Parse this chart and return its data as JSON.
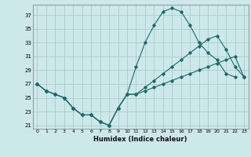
{
  "xlabel": "Humidex (Indice chaleur)",
  "bg_color": "#cde8e8",
  "grid_color": "#a8cccc",
  "line_color": "#1a6b6b",
  "xlim": [
    -0.5,
    23.5
  ],
  "ylim": [
    20.5,
    38.5
  ],
  "yticks": [
    21,
    23,
    25,
    27,
    29,
    31,
    33,
    35,
    37
  ],
  "xticks": [
    0,
    1,
    2,
    3,
    4,
    5,
    6,
    7,
    8,
    9,
    10,
    11,
    12,
    13,
    14,
    15,
    16,
    17,
    18,
    19,
    20,
    21,
    22,
    23
  ],
  "series1_x": [
    0,
    1,
    2,
    3,
    4,
    5,
    6,
    7,
    8,
    9,
    10,
    11,
    12,
    13,
    14,
    15,
    16,
    17,
    18,
    19,
    20,
    21,
    22
  ],
  "series1_y": [
    27.0,
    26.0,
    25.5,
    25.0,
    23.5,
    22.5,
    22.5,
    21.5,
    21.0,
    23.5,
    25.5,
    29.5,
    33.0,
    35.5,
    37.5,
    38.0,
    37.5,
    35.5,
    33.0,
    31.5,
    30.5,
    28.5,
    28.0
  ],
  "series2_x": [
    0,
    1,
    2,
    3,
    4,
    5,
    6,
    7,
    8,
    9,
    10,
    11,
    12,
    13,
    14,
    15,
    16,
    17,
    18,
    19,
    20,
    21,
    22,
    23
  ],
  "series2_y": [
    27.0,
    26.0,
    25.5,
    25.0,
    23.5,
    22.5,
    22.5,
    21.5,
    21.0,
    23.5,
    25.5,
    25.5,
    26.5,
    27.5,
    28.5,
    29.5,
    30.5,
    31.5,
    32.5,
    33.5,
    34.0,
    32.0,
    29.5,
    28.0
  ],
  "series3_x": [
    0,
    1,
    2,
    3,
    4,
    5,
    6,
    7,
    8,
    9,
    10,
    11,
    12,
    13,
    14,
    15,
    16,
    17,
    18,
    19,
    20,
    21,
    22,
    23
  ],
  "series3_y": [
    27.0,
    26.0,
    25.5,
    25.0,
    23.5,
    22.5,
    22.5,
    21.5,
    21.0,
    23.5,
    25.5,
    25.5,
    26.0,
    26.5,
    27.0,
    27.5,
    28.0,
    28.5,
    29.0,
    29.5,
    30.0,
    30.5,
    31.0,
    28.0
  ]
}
